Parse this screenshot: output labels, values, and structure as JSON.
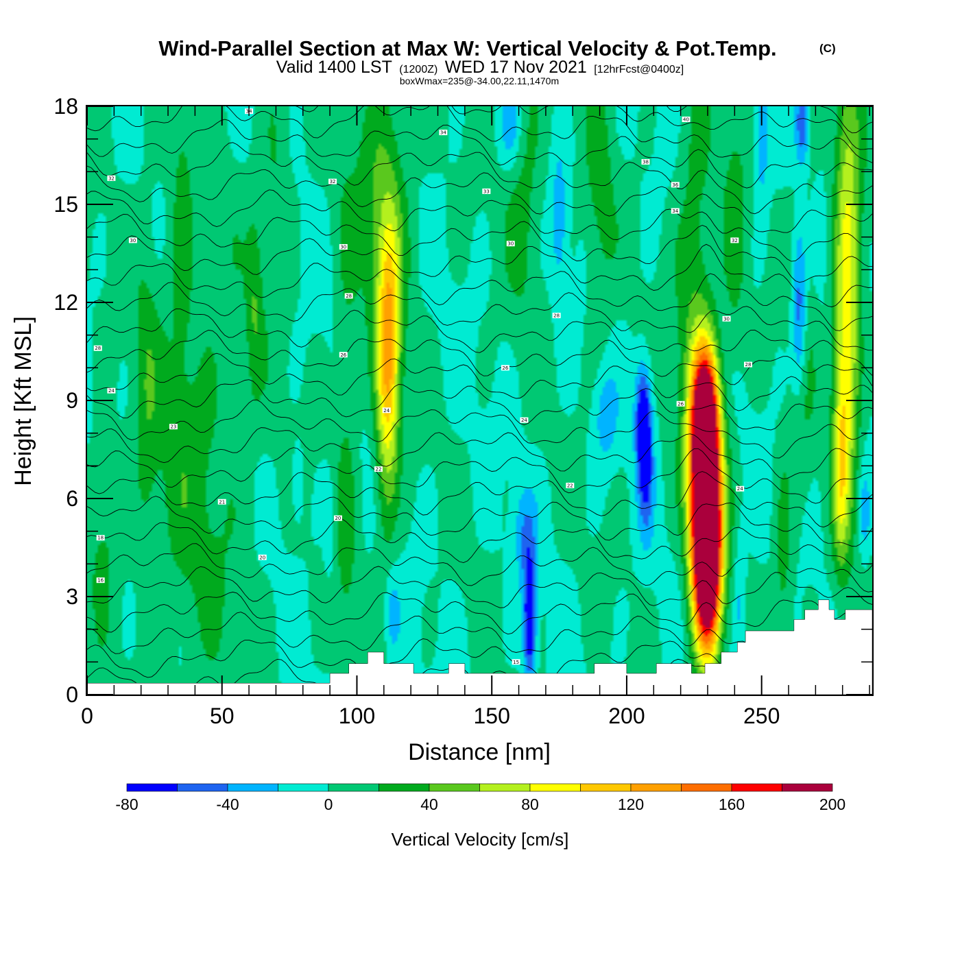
{
  "title": {
    "main": "Wind-Parallel Section at Max W: Vertical Velocity & Pot.Temp.",
    "tag": "(C)",
    "sub_valid": "Valid 1400 LST",
    "sub_utc": "(1200Z)",
    "sub_date": "WED 17 Nov 2021",
    "sub_fcst": "[12hrFcst@0400z]",
    "box_info": "boxWmax=235@-34.00,22.11,1470m"
  },
  "chart_data": {
    "type": "heatmap",
    "title": "Wind-Parallel Section at Max W: Vertical Velocity & Pot.Temp.",
    "xlabel": "Distance [nm]",
    "ylabel": "Height [Kft MSL]",
    "xlim": [
      0,
      291
    ],
    "ylim": [
      0,
      18
    ],
    "xticks": [
      0,
      50,
      100,
      150,
      200,
      250
    ],
    "yticks": [
      0,
      3,
      6,
      9,
      12,
      15,
      18
    ],
    "colorbar": {
      "title": "Vertical Velocity [cm/s]",
      "levels": [
        -80,
        -60,
        -40,
        -20,
        0,
        20,
        40,
        60,
        80,
        100,
        120,
        140,
        160,
        180,
        200,
        220
      ],
      "labels": [
        "-80",
        "-40",
        "0",
        "40",
        "80",
        "120",
        "160",
        "200"
      ],
      "colors": [
        "#0000ff",
        "#1e64f0",
        "#00b4ff",
        "#00ebd2",
        "#00c873",
        "#00aa1e",
        "#5ac81e",
        "#b4f01e",
        "#ffff00",
        "#ffc800",
        "#ffa000",
        "#ff6e00",
        "#ff0000",
        "#aa003c"
      ]
    },
    "background_value": 0,
    "w_features": [
      {
        "x": 112,
        "y": 11,
        "w": 78,
        "sx": 3,
        "sy": 2.5
      },
      {
        "x": 111,
        "y": 8.5,
        "w": 55,
        "sx": 3,
        "sy": 3
      },
      {
        "x": 229,
        "y": 6,
        "w": 215,
        "sx": 4,
        "sy": 2.5
      },
      {
        "x": 230,
        "y": 4,
        "w": 190,
        "sx": 3.5,
        "sy": 2
      },
      {
        "x": 229,
        "y": 8.5,
        "w": 150,
        "sx": 3.5,
        "sy": 1.5
      },
      {
        "x": 225,
        "y": 12.5,
        "w": 38,
        "sx": 5,
        "sy": 4
      },
      {
        "x": 282,
        "y": 14,
        "w": 72,
        "sx": 3.5,
        "sy": 4
      },
      {
        "x": 281,
        "y": 9,
        "w": 60,
        "sx": 3,
        "sy": 3
      },
      {
        "x": 279,
        "y": 6.5,
        "w": 48,
        "sx": 2,
        "sy": 2
      },
      {
        "x": 110,
        "y": 15,
        "w": 42,
        "sx": 7,
        "sy": 3
      },
      {
        "x": 62,
        "y": 12,
        "w": 30,
        "sx": 2,
        "sy": 2
      },
      {
        "x": 40,
        "y": 7,
        "w": 26,
        "sx": 14,
        "sy": 5
      },
      {
        "x": 162,
        "y": 16,
        "w": 30,
        "sx": 5,
        "sy": 3
      },
      {
        "x": 190,
        "y": 15,
        "w": 26,
        "sx": 4,
        "sy": 3
      },
      {
        "x": 240,
        "y": 14,
        "w": 28,
        "sx": 3,
        "sy": 3
      },
      {
        "x": 265,
        "y": 12,
        "w": 28,
        "sx": 3,
        "sy": 4
      },
      {
        "x": 258,
        "y": 4,
        "w": 30,
        "sx": 2.5,
        "sy": 2.5
      },
      {
        "x": 96,
        "y": 7,
        "w": 24,
        "sx": 3,
        "sy": 6
      },
      {
        "x": 70,
        "y": 16,
        "w": 24,
        "sx": 4,
        "sy": 3
      },
      {
        "x": 6,
        "y": 5,
        "w": 24,
        "sx": 4,
        "sy": 2
      },
      {
        "x": 35,
        "y": 15,
        "w": 22,
        "sx": 3,
        "sy": 4
      },
      {
        "x": 22,
        "y": 9,
        "w": 22,
        "sx": 3,
        "sy": 4
      },
      {
        "x": 206,
        "y": 8.5,
        "w": -70,
        "sx": 2,
        "sy": 1.2
      },
      {
        "x": 207,
        "y": 7,
        "w": -55,
        "sx": 2,
        "sy": 1.5
      },
      {
        "x": 164,
        "y": 3,
        "w": -60,
        "sx": 1.8,
        "sy": 1.2
      },
      {
        "x": 164,
        "y": 1.5,
        "w": -50,
        "sx": 1.5,
        "sy": 1
      },
      {
        "x": 265,
        "y": 17.5,
        "w": -65,
        "sx": 1.8,
        "sy": 1
      },
      {
        "x": 264,
        "y": 11,
        "w": -50,
        "sx": 2,
        "sy": 1.5
      },
      {
        "x": 264,
        "y": 13,
        "w": -40,
        "sx": 2,
        "sy": 1.5
      },
      {
        "x": 157,
        "y": 17.5,
        "w": -38,
        "sx": 3,
        "sy": 1
      },
      {
        "x": 175,
        "y": 14.5,
        "w": -32,
        "sx": 2,
        "sy": 1.5
      },
      {
        "x": 250,
        "y": 17,
        "w": -35,
        "sx": 2,
        "sy": 1.5
      },
      {
        "x": 192,
        "y": 8.5,
        "w": -32,
        "sx": 3,
        "sy": 1
      },
      {
        "x": 162,
        "y": 5,
        "w": -32,
        "sx": 3,
        "sy": 1
      },
      {
        "x": 113,
        "y": 2.5,
        "w": -30,
        "sx": 2,
        "sy": 1
      },
      {
        "x": 78,
        "y": 6.5,
        "w": -28,
        "sx": 1.5,
        "sy": 0.8
      },
      {
        "x": 90,
        "y": 5,
        "w": -22,
        "sx": 1.5,
        "sy": 1
      },
      {
        "x": 288,
        "y": 5.5,
        "w": -30,
        "sx": 1.5,
        "sy": 1
      },
      {
        "x": 242,
        "y": 3,
        "w": -26,
        "sx": 1.5,
        "sy": 1.5
      }
    ],
    "terrain": [
      [
        0,
        0.35
      ],
      [
        90,
        0.35
      ],
      [
        90,
        0.65
      ],
      [
        97,
        0.65
      ],
      [
        97,
        0.95
      ],
      [
        104,
        0.95
      ],
      [
        104,
        1.3
      ],
      [
        110,
        1.3
      ],
      [
        110,
        0.95
      ],
      [
        121,
        0.95
      ],
      [
        121,
        0.65
      ],
      [
        134,
        0.65
      ],
      [
        134,
        0.95
      ],
      [
        140,
        0.95
      ],
      [
        140,
        0.65
      ],
      [
        188,
        0.65
      ],
      [
        188,
        0.95
      ],
      [
        200,
        0.95
      ],
      [
        200,
        0.65
      ],
      [
        211,
        0.65
      ],
      [
        211,
        0.95
      ],
      [
        224,
        0.95
      ],
      [
        224,
        0.65
      ],
      [
        229,
        0.65
      ],
      [
        229,
        0.95
      ],
      [
        235,
        0.95
      ],
      [
        235,
        1.3
      ],
      [
        241,
        1.3
      ],
      [
        241,
        1.6
      ],
      [
        244,
        1.6
      ],
      [
        244,
        1.95
      ],
      [
        262,
        1.95
      ],
      [
        262,
        2.3
      ],
      [
        266,
        2.3
      ],
      [
        266,
        2.6
      ],
      [
        271,
        2.6
      ],
      [
        271,
        2.9
      ],
      [
        275,
        2.9
      ],
      [
        275,
        2.6
      ],
      [
        277,
        2.6
      ],
      [
        277,
        2.3
      ],
      [
        281,
        2.3
      ],
      [
        281,
        2.6
      ],
      [
        291,
        2.6
      ]
    ],
    "theta_levels": [
      14,
      15,
      16,
      17,
      18,
      19,
      20,
      21,
      22,
      23,
      24,
      25,
      26,
      27,
      28,
      29,
      30,
      31,
      32,
      33,
      34,
      35,
      36,
      37,
      38,
      39,
      40
    ],
    "theta_labels": [
      {
        "x": 60,
        "y": 17.85,
        "text": "34"
      },
      {
        "x": 9,
        "y": 15.8,
        "text": "32"
      },
      {
        "x": 17,
        "y": 13.9,
        "text": "30"
      },
      {
        "x": 4,
        "y": 10.6,
        "text": "28"
      },
      {
        "x": 9,
        "y": 9.3,
        "text": "24"
      },
      {
        "x": 32,
        "y": 8.2,
        "text": "23"
      },
      {
        "x": 50,
        "y": 5.9,
        "text": "21"
      },
      {
        "x": 5,
        "y": 4.8,
        "text": "18"
      },
      {
        "x": 5,
        "y": 3.5,
        "text": "16"
      },
      {
        "x": 65,
        "y": 4.2,
        "text": "20"
      },
      {
        "x": 91,
        "y": 15.7,
        "text": "32"
      },
      {
        "x": 95,
        "y": 13.7,
        "text": "30"
      },
      {
        "x": 97,
        "y": 12.2,
        "text": "28"
      },
      {
        "x": 95,
        "y": 10.4,
        "text": "26"
      },
      {
        "x": 111,
        "y": 8.7,
        "text": "24"
      },
      {
        "x": 108,
        "y": 6.9,
        "text": "22"
      },
      {
        "x": 93,
        "y": 5.4,
        "text": "20"
      },
      {
        "x": 132,
        "y": 17.2,
        "text": "34"
      },
      {
        "x": 148,
        "y": 15.4,
        "text": "33"
      },
      {
        "x": 157,
        "y": 13.8,
        "text": "30"
      },
      {
        "x": 174,
        "y": 11.6,
        "text": "28"
      },
      {
        "x": 155,
        "y": 10,
        "text": "26"
      },
      {
        "x": 162,
        "y": 8.4,
        "text": "24"
      },
      {
        "x": 179,
        "y": 6.4,
        "text": "22"
      },
      {
        "x": 159,
        "y": 1,
        "text": "15"
      },
      {
        "x": 222,
        "y": 17.6,
        "text": "40"
      },
      {
        "x": 207,
        "y": 16.3,
        "text": "38"
      },
      {
        "x": 218,
        "y": 15.6,
        "text": "36"
      },
      {
        "x": 218,
        "y": 14.8,
        "text": "34"
      },
      {
        "x": 240,
        "y": 13.9,
        "text": "32"
      },
      {
        "x": 237,
        "y": 11.5,
        "text": "30"
      },
      {
        "x": 245,
        "y": 10.1,
        "text": "28"
      },
      {
        "x": 220,
        "y": 8.9,
        "text": "26"
      },
      {
        "x": 242,
        "y": 6.3,
        "text": "24"
      }
    ]
  }
}
